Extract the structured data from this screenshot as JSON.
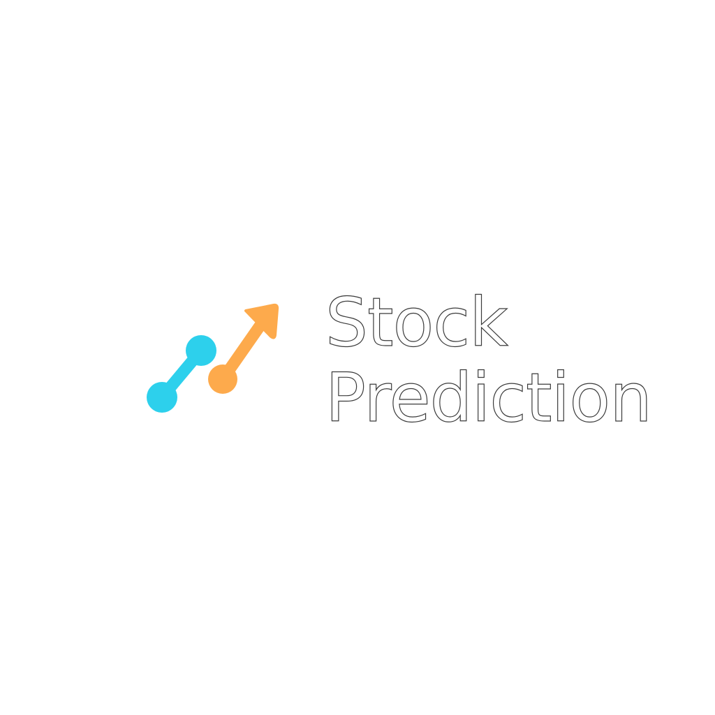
{
  "logo": {
    "icon": "rising-trend-arrow-icon",
    "colors": {
      "left_stroke": "#2dd0ec",
      "right_stroke": "#fdaa4c",
      "text_fill": "#ffffff",
      "text_outline": "#3a3a3a",
      "background": "#ffffff"
    },
    "wordmark": {
      "line1": "Stock",
      "line2": "Prediction"
    }
  }
}
